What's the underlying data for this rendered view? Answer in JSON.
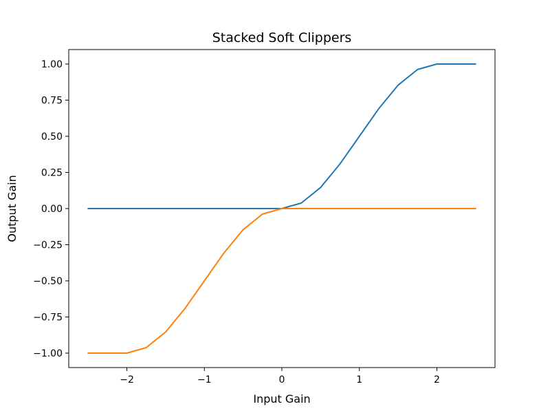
{
  "chart_data": {
    "type": "line",
    "title": "Stacked Soft Clippers",
    "xlabel": "Input Gain",
    "ylabel": "Output Gain",
    "xlim": [
      -2.75,
      2.75
    ],
    "ylim": [
      -1.1,
      1.1
    ],
    "grid": false,
    "x_ticks": [
      -2,
      -1,
      0,
      1,
      2
    ],
    "x_tick_labels": [
      "−2",
      "−1",
      "0",
      "1",
      "2"
    ],
    "y_ticks": [
      1.0,
      0.75,
      0.5,
      0.25,
      0.0,
      -0.25,
      -0.5,
      -0.75,
      -1.0
    ],
    "y_tick_labels": [
      "1.00",
      "0.75",
      "0.50",
      "0.25",
      "0.00",
      "−0.25",
      "−0.50",
      "−0.75",
      "−1.00"
    ],
    "x": [
      -2.5,
      -2.25,
      -2.0,
      -1.75,
      -1.5,
      -1.25,
      -1.0,
      -0.75,
      -0.5,
      -0.25,
      0.0,
      0.25,
      0.5,
      0.75,
      1.0,
      1.25,
      1.5,
      1.75,
      2.0,
      2.25,
      2.5
    ],
    "series": [
      {
        "color": "#1f77b4",
        "values": [
          0,
          0,
          0,
          0,
          0,
          0,
          0,
          0,
          0,
          0,
          0,
          0.038,
          0.146,
          0.309,
          0.5,
          0.691,
          0.854,
          0.962,
          1.0,
          1.0,
          1.0
        ]
      },
      {
        "color": "#ff7f0e",
        "values": [
          -1.0,
          -1.0,
          -1.0,
          -0.962,
          -0.854,
          -0.691,
          -0.5,
          -0.309,
          -0.146,
          -0.038,
          0,
          0,
          0,
          0,
          0,
          0,
          0,
          0,
          0,
          0,
          0
        ]
      }
    ]
  }
}
